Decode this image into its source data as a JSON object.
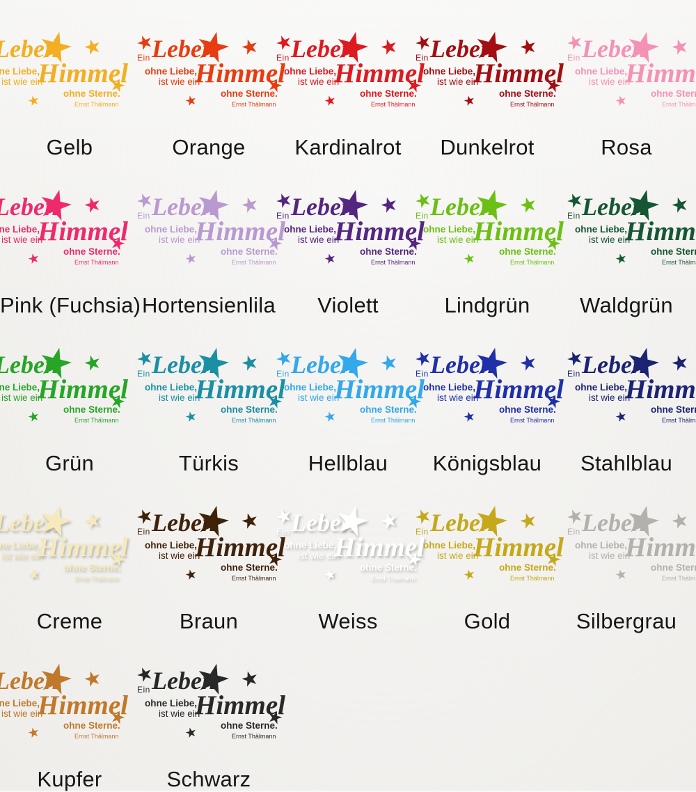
{
  "page": {
    "background": "#f2f1ee",
    "label_color": "#161616"
  },
  "design_text": {
    "ein": "Ein",
    "leben": "Leben",
    "ohne_liebe": "ohne Liebe,",
    "ist_wie_ein": "ist wie ein",
    "himmel": "Himmel",
    "ohne_sterne": "ohne Sterne.",
    "author": "Ernst Thälmann",
    "star": "★"
  },
  "rows": [
    {
      "swatches": [
        {
          "label": "Gelb",
          "color": "#F2AF24"
        },
        {
          "label": "Orange",
          "color": "#E83C10"
        },
        {
          "label": "Kardinalrot",
          "color": "#DE1A21"
        },
        {
          "label": "Dunkelrot",
          "color": "#A30E13"
        },
        {
          "label": "Rosa",
          "color": "#F492B5"
        }
      ]
    },
    {
      "swatches": [
        {
          "label": "Pink (Fuchsia)",
          "color": "#EE2A6C"
        },
        {
          "label": "Hortensienlila",
          "color": "#B99AD0"
        },
        {
          "label": "Violett",
          "color": "#552680"
        },
        {
          "label": "Lindgrün",
          "color": "#6CC015"
        },
        {
          "label": "Waldgrün",
          "color": "#175634"
        }
      ]
    },
    {
      "swatches": [
        {
          "label": "Grün",
          "color": "#27A527"
        },
        {
          "label": "Türkis",
          "color": "#1B8FA4"
        },
        {
          "label": "Hellblau",
          "color": "#33A8EA"
        },
        {
          "label": "Königsblau",
          "color": "#2030A8"
        },
        {
          "label": "Stahlblau",
          "color": "#1B2372"
        }
      ]
    },
    {
      "swatches": [
        {
          "label": "Creme",
          "color": "#F6E9BC",
          "shadow": true
        },
        {
          "label": "Braun",
          "color": "#40220B"
        },
        {
          "label": "Weiss",
          "color": "#FFFFFF",
          "shadow": true
        },
        {
          "label": "Gold",
          "color": "#C5A91B"
        },
        {
          "label": "Silbergrau",
          "color": "#B3B1AE"
        }
      ]
    },
    {
      "swatches": [
        {
          "label": "Kupfer",
          "color": "#C0792B"
        },
        {
          "label": "Schwarz",
          "color": "#282828"
        }
      ]
    }
  ]
}
